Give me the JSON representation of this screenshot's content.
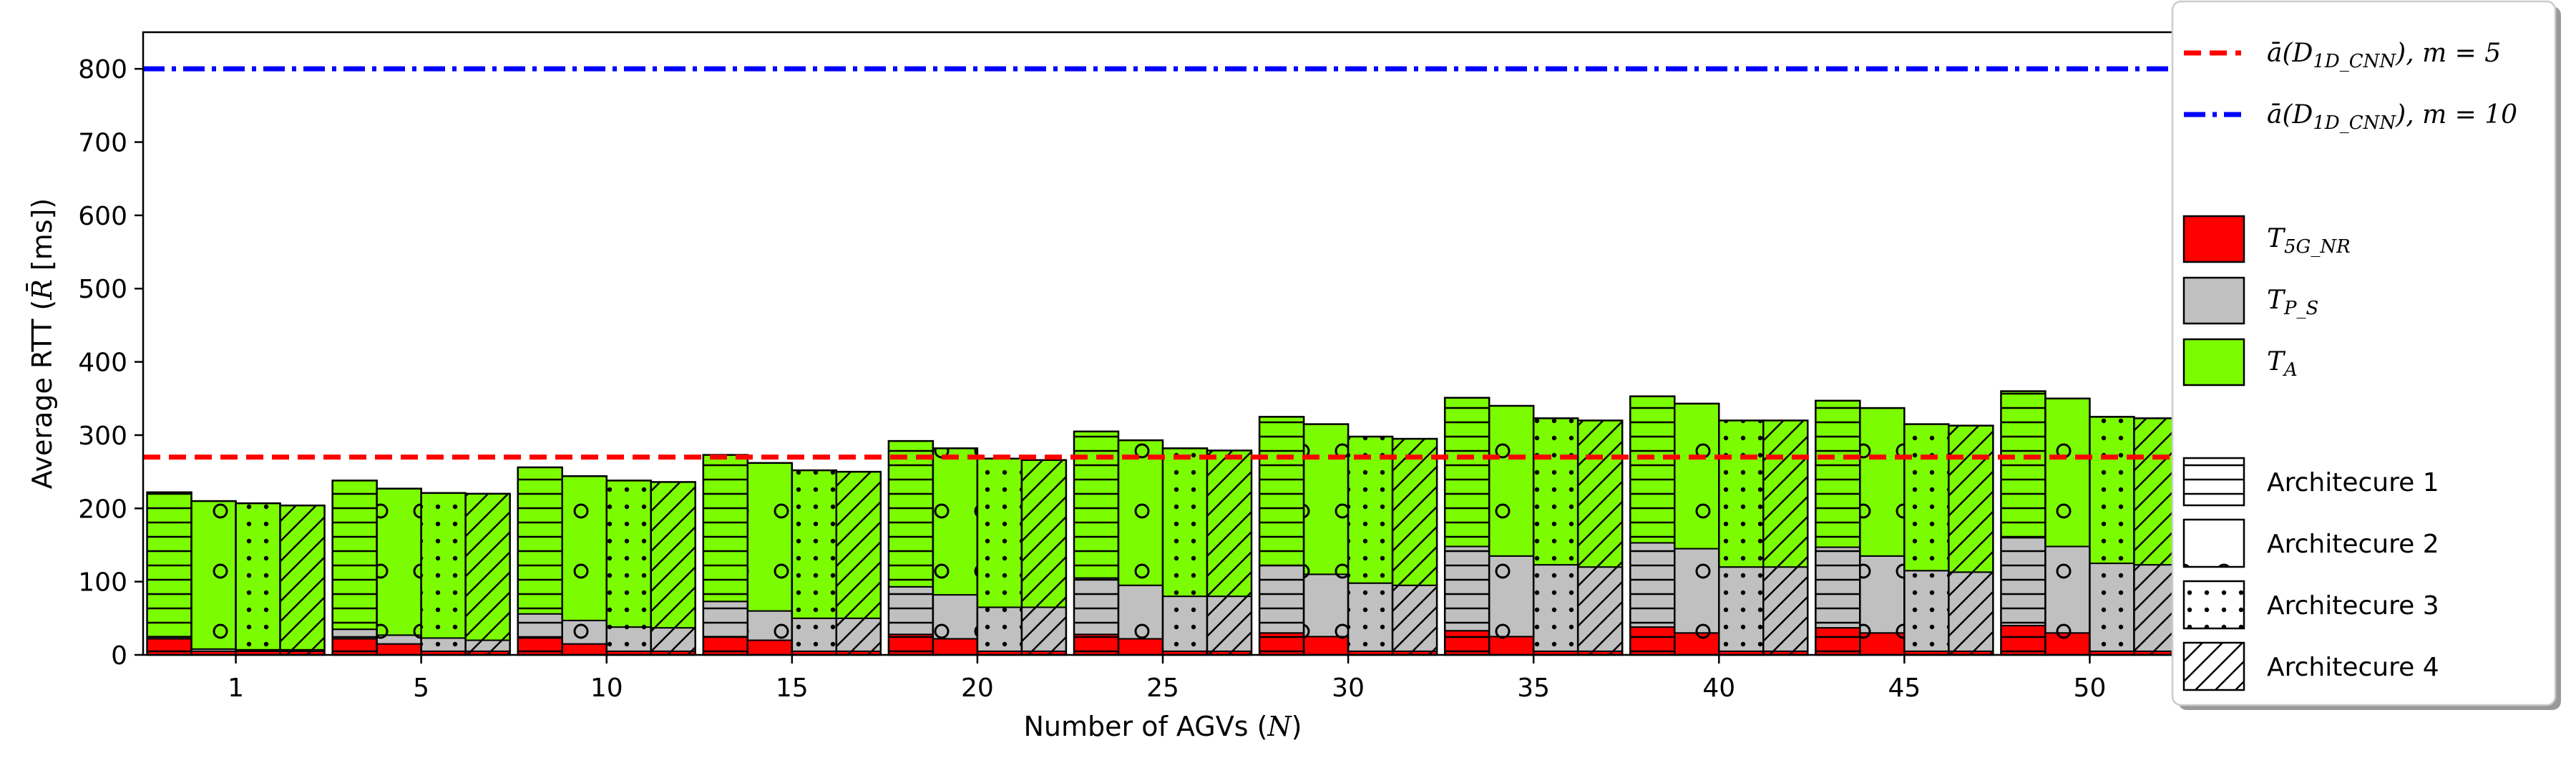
{
  "chart_data": {
    "type": "bar",
    "subtype": "grouped-stacked",
    "xlabel": "Number of AGVs",
    "xlabel_var": "N",
    "ylabel": "Average RTT",
    "ylabel_var": "R̄",
    "ylabel_unit": "[ms]",
    "ylim": [
      0,
      850
    ],
    "yticks": [
      0,
      100,
      200,
      300,
      400,
      500,
      600,
      700,
      800
    ],
    "categories": [
      "1",
      "5",
      "10",
      "15",
      "20",
      "25",
      "30",
      "35",
      "40",
      "45",
      "50"
    ],
    "architectures": [
      "Architecure 1",
      "Architecure 2",
      "Architecure 3",
      "Architecure 4"
    ],
    "components": [
      "T_5G_NR",
      "T_P_S",
      "T_A"
    ],
    "series": [
      {
        "name": "Architecure 1",
        "hatch": "horizontal",
        "T_5G_NR": [
          22,
          22,
          23,
          25,
          28,
          28,
          30,
          33,
          38,
          37,
          40
        ],
        "T_P_S": [
          3,
          13,
          33,
          48,
          65,
          77,
          92,
          115,
          115,
          110,
          120
        ],
        "T_A": [
          197,
          203,
          200,
          200,
          199,
          200,
          203,
          203,
          200,
          200,
          200
        ]
      },
      {
        "name": "Architecure 2",
        "hatch": "circles",
        "T_5G_NR": [
          5,
          15,
          15,
          20,
          22,
          22,
          25,
          25,
          30,
          30,
          30
        ],
        "T_P_S": [
          3,
          12,
          32,
          40,
          60,
          73,
          85,
          110,
          115,
          105,
          118
        ],
        "T_A": [
          202,
          200,
          197,
          202,
          200,
          198,
          205,
          205,
          198,
          202,
          202
        ]
      },
      {
        "name": "Architecure 3",
        "hatch": "dots",
        "T_5G_NR": [
          5,
          5,
          5,
          5,
          5,
          5,
          5,
          5,
          5,
          5,
          5
        ],
        "T_P_S": [
          2,
          18,
          33,
          45,
          60,
          75,
          93,
          118,
          115,
          110,
          120
        ],
        "T_A": [
          200,
          198,
          200,
          202,
          203,
          202,
          200,
          200,
          200,
          200,
          200
        ]
      },
      {
        "name": "Architecure 4",
        "hatch": "diagonal",
        "T_5G_NR": [
          5,
          5,
          5,
          5,
          5,
          5,
          5,
          5,
          5,
          5,
          5
        ],
        "T_P_S": [
          2,
          15,
          32,
          45,
          60,
          75,
          90,
          115,
          115,
          108,
          118
        ],
        "T_A": [
          197,
          200,
          199,
          200,
          201,
          199,
          200,
          200,
          200,
          200,
          200
        ]
      }
    ],
    "reference_lines": [
      {
        "name": "ā(D_1D_CNN), m = 5",
        "value": 270,
        "color": "#ff0000",
        "style": "dashed"
      },
      {
        "name": "ā(D_1D_CNN), m = 10",
        "value": 800,
        "color": "#0000ff",
        "style": "dashdot"
      }
    ],
    "colors": {
      "T_5G_NR": "#ff0000",
      "T_P_S": "#c0c0c0",
      "T_A": "#7cfc00"
    },
    "legend_placement": "right"
  },
  "legend": {
    "line1": {
      "prefix": "ā(D",
      "sub": "1D_CNN",
      "suffix": "), m = 5"
    },
    "line2": {
      "prefix": "ā(D",
      "sub": "1D_CNN",
      "suffix": "), m = 10"
    },
    "comp1": {
      "base": "T",
      "sub": "5G_NR"
    },
    "comp2": {
      "base": "T",
      "sub": "P_S"
    },
    "comp3": {
      "base": "T",
      "sub": "A"
    }
  }
}
